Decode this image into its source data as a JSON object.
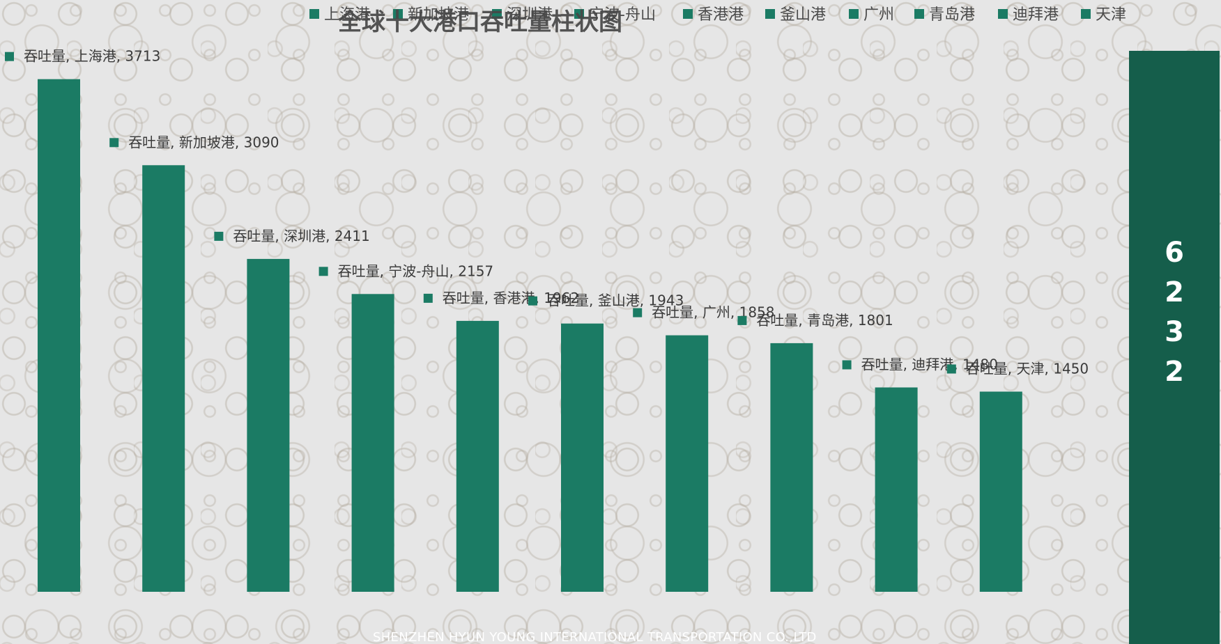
{
  "chart_data": {
    "type": "bar",
    "title": "全球十大港口吞吐量柱状图",
    "series_label": "吞吐量",
    "categories": [
      "上海港",
      "新加坡港",
      "深圳港",
      "宁波-舟山",
      "香港港",
      "釜山港",
      "广州",
      "青岛港",
      "迪拜港",
      "天津"
    ],
    "values": [
      3713,
      3090,
      2411,
      2157,
      1962,
      1943,
      1858,
      1801,
      1480,
      1450
    ],
    "data_label_format": "{series}, {category}, {value}",
    "legend": {
      "position": "top",
      "entries": [
        "上海港",
        "新加坡港",
        "深圳港",
        "宁波-舟山",
        "香港港",
        "釜山港",
        "广州",
        "青岛港",
        "迪拜港",
        "天津"
      ]
    },
    "ylim": [
      0,
      4000
    ],
    "grid": false,
    "colors": {
      "bar": "#1b7b64",
      "side_panel": "#155e4b"
    }
  },
  "side_panel": {
    "number": "6232"
  },
  "footer": {
    "company": "SHENZHEN HYUN YOUNG INTERNATIONAL TRANSPORTATION CO.,LTD"
  }
}
